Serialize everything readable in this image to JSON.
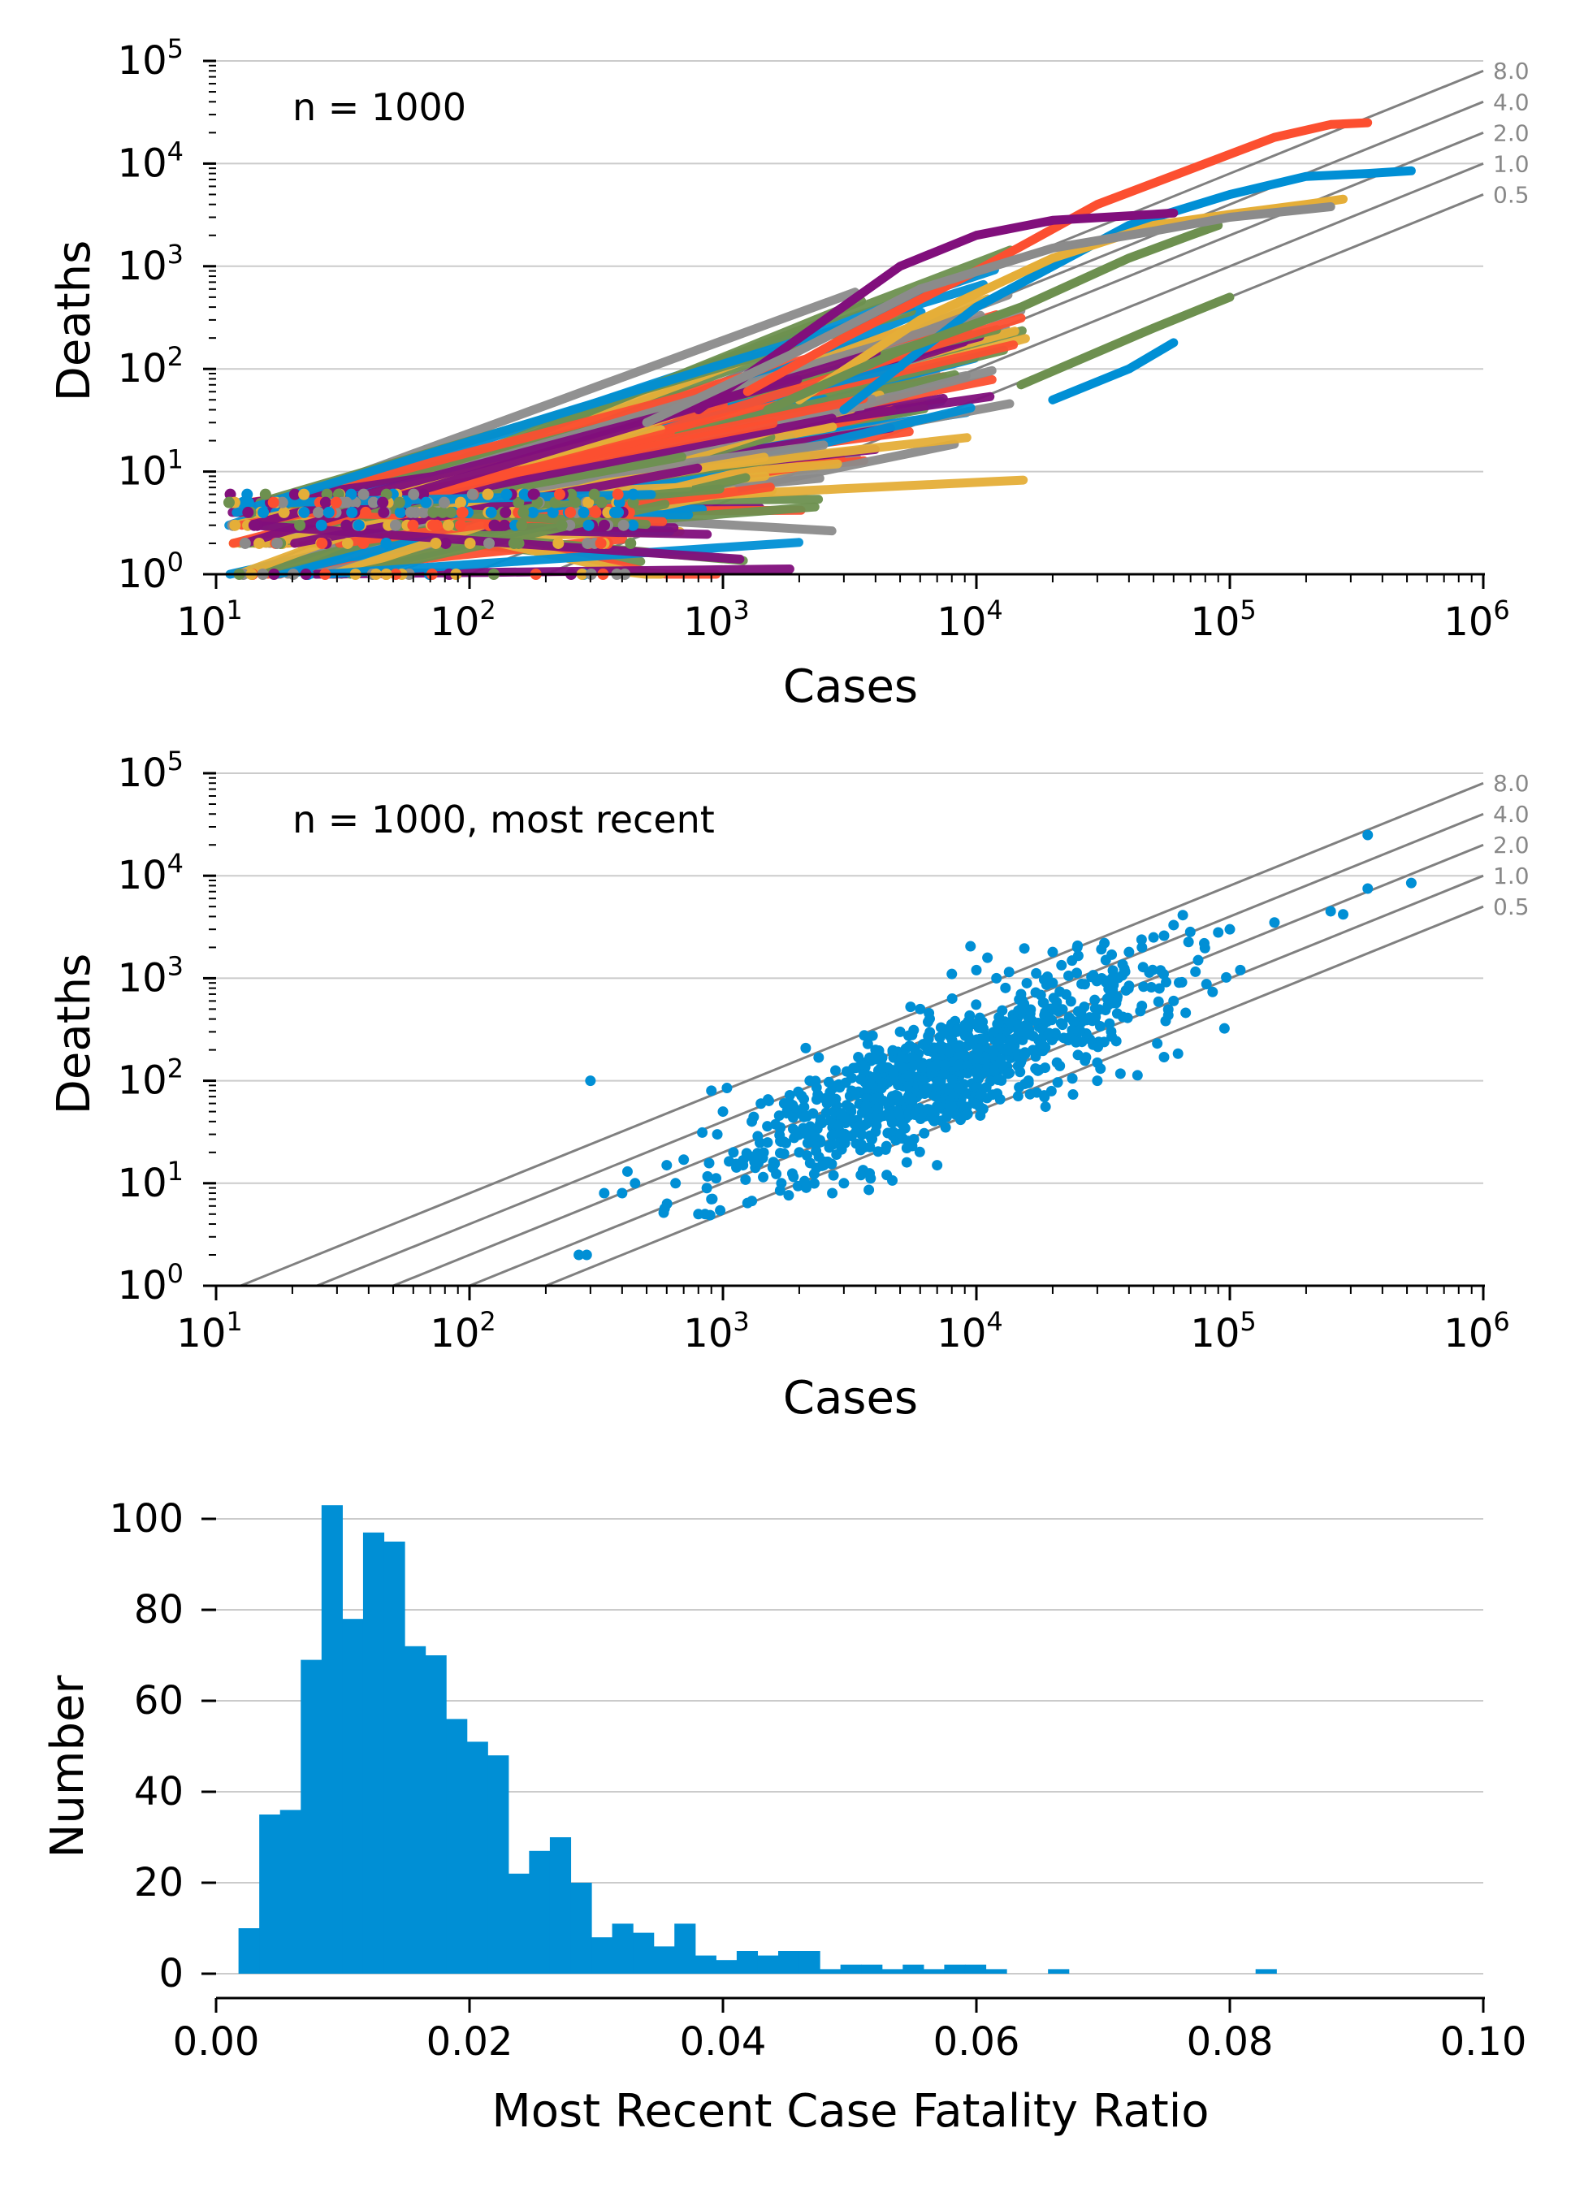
{
  "colors": {
    "palette": [
      "#008fd5",
      "#fc4f30",
      "#e5ae38",
      "#6d904f",
      "#8b8b8b",
      "#810f7c"
    ],
    "reference_line": "#808080",
    "grid": "#cbcbcb",
    "axis": "#000000",
    "histogram": "#008fd5"
  },
  "chart_data": [
    {
      "type": "scatter",
      "annotation": "n = 1000",
      "xlabel": "Cases",
      "ylabel": "Deaths",
      "xscale": "log",
      "yscale": "log",
      "xlim": [
        10,
        1000000
      ],
      "ylim": [
        1,
        100000
      ],
      "x_ticks": [
        {
          "base": "10",
          "exp": "1",
          "value": 10
        },
        {
          "base": "10",
          "exp": "2",
          "value": 100
        },
        {
          "base": "10",
          "exp": "3",
          "value": 1000
        },
        {
          "base": "10",
          "exp": "4",
          "value": 10000
        },
        {
          "base": "10",
          "exp": "5",
          "value": 100000
        },
        {
          "base": "10",
          "exp": "6",
          "value": 1000000
        }
      ],
      "y_ticks": [
        {
          "base": "10",
          "exp": "0",
          "value": 1
        },
        {
          "base": "10",
          "exp": "1",
          "value": 10
        },
        {
          "base": "10",
          "exp": "2",
          "value": 100
        },
        {
          "base": "10",
          "exp": "3",
          "value": 1000
        },
        {
          "base": "10",
          "exp": "4",
          "value": 10000
        },
        {
          "base": "10",
          "exp": "5",
          "value": 100000
        }
      ],
      "grid": "horizontal",
      "reference_lines": [
        {
          "label": "8.0",
          "cfr_percent": 8.0
        },
        {
          "label": "4.0",
          "cfr_percent": 4.0
        },
        {
          "label": "2.0",
          "cfr_percent": 2.0
        },
        {
          "label": "1.0",
          "cfr_percent": 1.0
        },
        {
          "label": "0.5",
          "cfr_percent": 0.5
        }
      ],
      "series": [
        {
          "color_index": 1,
          "points": [
            [
              1250,
              60
            ],
            [
              3000,
              200
            ],
            [
              10000,
              900
            ],
            [
              30000,
              4000
            ],
            [
              80000,
              10000
            ],
            [
              150000,
              18000
            ],
            [
              250000,
              24000
            ],
            [
              350000,
              25000
            ]
          ]
        },
        {
          "color_index": 0,
          "points": [
            [
              3000,
              40
            ],
            [
              10000,
              400
            ],
            [
              40000,
              2500
            ],
            [
              100000,
              5000
            ],
            [
              200000,
              7500
            ],
            [
              350000,
              8000
            ],
            [
              520000,
              8500
            ]
          ]
        },
        {
          "color_index": 5,
          "points": [
            [
              800,
              40
            ],
            [
              2000,
              200
            ],
            [
              5000,
              1000
            ],
            [
              10000,
              2000
            ],
            [
              20000,
              2800
            ],
            [
              50000,
              3200
            ],
            [
              60000,
              3300
            ]
          ]
        },
        {
          "color_index": 2,
          "points": [
            [
              2000,
              50
            ],
            [
              6000,
              300
            ],
            [
              20000,
              1200
            ],
            [
              50000,
              2500
            ],
            [
              100000,
              3200
            ],
            [
              200000,
              4000
            ],
            [
              280000,
              4500
            ]
          ]
        },
        {
          "color_index": 3,
          "points": [
            [
              1500,
              40
            ],
            [
              5000,
              150
            ],
            [
              15000,
              400
            ],
            [
              40000,
              1200
            ],
            [
              70000,
              2000
            ],
            [
              90000,
              2500
            ]
          ]
        },
        {
          "color_index": 4,
          "points": [
            [
              500,
              30
            ],
            [
              2000,
              150
            ],
            [
              6000,
              600
            ],
            [
              20000,
              1500
            ],
            [
              50000,
              2200
            ],
            [
              100000,
              3000
            ],
            [
              250000,
              3800
            ]
          ]
        },
        {
          "color_index": 0,
          "points": [
            [
              20000,
              50
            ],
            [
              40000,
              100
            ],
            [
              60000,
              180
            ]
          ]
        },
        {
          "color_index": 3,
          "points": [
            [
              15000,
              70
            ],
            [
              50000,
              250
            ],
            [
              90000,
              450
            ],
            [
              100000,
              500
            ]
          ]
        }
      ],
      "cloud_seed": 11
    },
    {
      "type": "scatter",
      "annotation": "n = 1000, most recent",
      "xlabel": "Cases",
      "ylabel": "Deaths",
      "xscale": "log",
      "yscale": "log",
      "xlim": [
        10,
        1000000
      ],
      "ylim": [
        1,
        100000
      ],
      "x_ticks": [
        {
          "base": "10",
          "exp": "1",
          "value": 10
        },
        {
          "base": "10",
          "exp": "2",
          "value": 100
        },
        {
          "base": "10",
          "exp": "3",
          "value": 1000
        },
        {
          "base": "10",
          "exp": "4",
          "value": 10000
        },
        {
          "base": "10",
          "exp": "5",
          "value": 100000
        },
        {
          "base": "10",
          "exp": "6",
          "value": 1000000
        }
      ],
      "y_ticks": [
        {
          "base": "10",
          "exp": "0",
          "value": 1
        },
        {
          "base": "10",
          "exp": "1",
          "value": 10
        },
        {
          "base": "10",
          "exp": "2",
          "value": 100
        },
        {
          "base": "10",
          "exp": "3",
          "value": 1000
        },
        {
          "base": "10",
          "exp": "4",
          "value": 10000
        },
        {
          "base": "10",
          "exp": "5",
          "value": 100000
        }
      ],
      "grid": "horizontal",
      "reference_lines": [
        {
          "label": "8.0",
          "cfr_percent": 8.0
        },
        {
          "label": "4.0",
          "cfr_percent": 4.0
        },
        {
          "label": "2.0",
          "cfr_percent": 2.0
        },
        {
          "label": "1.0",
          "cfr_percent": 1.0
        },
        {
          "label": "0.5",
          "cfr_percent": 0.5
        }
      ],
      "points": [
        [
          350000,
          25000
        ],
        [
          520000,
          8500
        ],
        [
          350000,
          7500
        ],
        [
          250000,
          4500
        ],
        [
          280000,
          4200
        ],
        [
          150000,
          3500
        ],
        [
          100000,
          3000
        ],
        [
          90000,
          2800
        ],
        [
          60000,
          3300
        ],
        [
          55000,
          2600
        ],
        [
          50000,
          2500
        ],
        [
          45000,
          2000
        ],
        [
          40000,
          1800
        ],
        [
          32000,
          2200
        ],
        [
          25000,
          2000
        ],
        [
          20000,
          1800
        ],
        [
          110000,
          1200
        ],
        [
          75000,
          1500
        ],
        [
          60000,
          600
        ],
        [
          30000,
          150
        ],
        [
          55000,
          170
        ],
        [
          20000,
          900
        ],
        [
          15000,
          700
        ],
        [
          12000,
          1000
        ],
        [
          900,
          80
        ],
        [
          270,
          2
        ],
        [
          290,
          2
        ],
        [
          340,
          8
        ],
        [
          400,
          8
        ],
        [
          450,
          10
        ],
        [
          420,
          13
        ],
        [
          600,
          15
        ],
        [
          650,
          10
        ],
        [
          700,
          17
        ],
        [
          800,
          5
        ],
        [
          850,
          5
        ],
        [
          900,
          7
        ],
        [
          950,
          30
        ],
        [
          1000,
          50
        ],
        [
          1100,
          20
        ],
        [
          1200,
          15
        ],
        [
          1300,
          40
        ],
        [
          1500,
          25
        ],
        [
          1700,
          10
        ],
        [
          1800,
          60
        ],
        [
          2000,
          20
        ],
        [
          2200,
          100
        ],
        [
          2500,
          15
        ],
        [
          2700,
          8
        ],
        [
          3000,
          10
        ],
        [
          3500,
          12
        ],
        [
          4000,
          200
        ],
        [
          5000,
          300
        ],
        [
          6000,
          500
        ],
        [
          7000,
          15
        ],
        [
          9000,
          350
        ],
        [
          300,
          100
        ],
        [
          30000,
          100
        ],
        [
          10000,
          1200
        ],
        [
          8000,
          1100
        ]
      ],
      "cloud": {
        "n": 930,
        "seed": 29,
        "logx_center": 3.85,
        "logx_sd": 0.4,
        "logy_offset": -1.8,
        "logy_sd": 0.28
      }
    },
    {
      "type": "bar",
      "subtype": "histogram",
      "xlabel": "Most Recent Case Fatality Ratio",
      "ylabel": "Number",
      "xlim": [
        0.0,
        0.1
      ],
      "ylim": [
        -5,
        108
      ],
      "x_ticks": [
        "0.00",
        "0.02",
        "0.04",
        "0.06",
        "0.08",
        "0.10"
      ],
      "x_tick_values": [
        0.0,
        0.02,
        0.04,
        0.06,
        0.08,
        0.1
      ],
      "y_ticks": [
        "0",
        "20",
        "40",
        "60",
        "80",
        "100"
      ],
      "y_tick_values": [
        0,
        20,
        40,
        60,
        80,
        100
      ],
      "grid": "horizontal",
      "bin_start": 0.00177,
      "bin_width": 0.001638,
      "values": [
        10,
        35,
        36,
        69,
        103,
        78,
        97,
        95,
        72,
        70,
        56,
        51,
        48,
        22,
        27,
        30,
        20,
        8,
        11,
        9,
        6,
        11,
        4,
        3,
        5,
        4,
        5,
        5,
        1,
        2,
        2,
        1,
        2,
        1,
        2,
        2,
        1,
        0,
        0,
        1,
        0,
        0,
        0,
        0,
        0,
        0,
        0,
        0,
        0,
        1
      ]
    }
  ]
}
